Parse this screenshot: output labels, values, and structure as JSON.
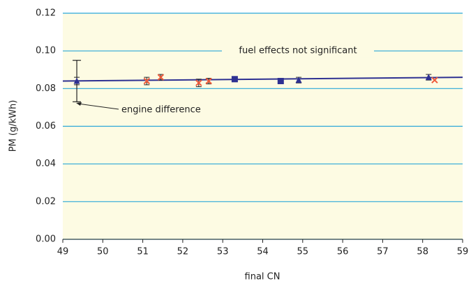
{
  "chart_data": {
    "type": "scatter",
    "x_label": "final CN",
    "y_label": "PM (g/kWh)",
    "xlim": [
      49,
      59
    ],
    "ylim": [
      0,
      0.12
    ],
    "xticks": [
      49,
      50,
      51,
      52,
      53,
      54,
      55,
      56,
      57,
      58,
      59
    ],
    "yticks": [
      {
        "value": 0,
        "label": "0.00"
      },
      0.02,
      0.04,
      0.06,
      0.08,
      {
        "value": 0.1,
        "label": "0.10"
      },
      0.12
    ],
    "grid": true,
    "grid_color": "#2aa7d9",
    "background": "#fdfbe3",
    "series": [
      {
        "marker": "triangle",
        "color": "#2e3192",
        "x": [
          49.35,
          54.9,
          58.15
        ],
        "values": [
          0.084,
          0.0845,
          0.086
        ],
        "errors": [
          0.002,
          0.0015,
          0.0015
        ]
      },
      {
        "marker": "cross",
        "color": "#ef5a3a",
        "x": [
          51.1,
          51.45,
          52.4,
          52.65,
          58.3
        ],
        "values": [
          0.084,
          0.086,
          0.083,
          0.084,
          0.0845
        ],
        "errors": [
          0.002,
          0.0015,
          0.002,
          0.0015,
          null
        ]
      },
      {
        "marker": "square",
        "color": "#2e3192",
        "x": [
          53.3,
          54.45
        ],
        "values": [
          0.085,
          0.084
        ],
        "errors": [
          null,
          null
        ]
      }
    ],
    "trend": {
      "color": "#2e3192",
      "x": [
        49,
        59
      ],
      "values": [
        0.084,
        0.086
      ]
    },
    "engine_range": {
      "x": 49.35,
      "value": 0.084,
      "error": 0.011
    },
    "annotations": [
      "engine difference",
      "fuel effects not significant"
    ]
  }
}
